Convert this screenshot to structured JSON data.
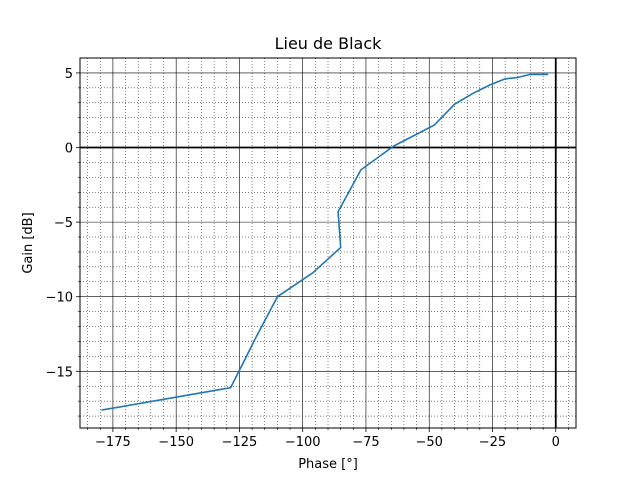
{
  "chart_data": {
    "type": "line",
    "title": "Lieu de Black",
    "xlabel": "Phase [°]",
    "ylabel": "Gain [dB]",
    "xlim": [
      -188,
      8
    ],
    "ylim": [
      -18.8,
      6.0
    ],
    "xticks": [
      -175,
      -150,
      -125,
      -100,
      -75,
      -50,
      -25,
      0
    ],
    "xtick_labels": [
      "−175",
      "−150",
      "−125",
      "−100",
      "−75",
      "−50",
      "−25",
      "0"
    ],
    "yticks": [
      5,
      0,
      -5,
      -10,
      -15
    ],
    "ytick_labels": [
      "5",
      "0",
      "−5",
      "−10",
      "−15"
    ],
    "grid": "major solid, minor dotted",
    "reference_lines": {
      "x": 0,
      "y": 0
    },
    "series": [
      {
        "color": "#1f77b4",
        "x": [
          -179.5,
          -128.5,
          -124,
          -119,
          -110,
          -96,
          -85,
          -86,
          -77,
          -64,
          -48,
          -40,
          -33,
          -26,
          -20,
          -15,
          -10,
          -5,
          -3
        ],
        "y": [
          -17.6,
          -16.1,
          -14.6,
          -12.9,
          -10,
          -8.4,
          -6.7,
          -4.3,
          -1.5,
          0.1,
          1.5,
          2.9,
          3.6,
          4.2,
          4.6,
          4.7,
          4.9,
          4.9,
          4.9
        ]
      }
    ]
  }
}
